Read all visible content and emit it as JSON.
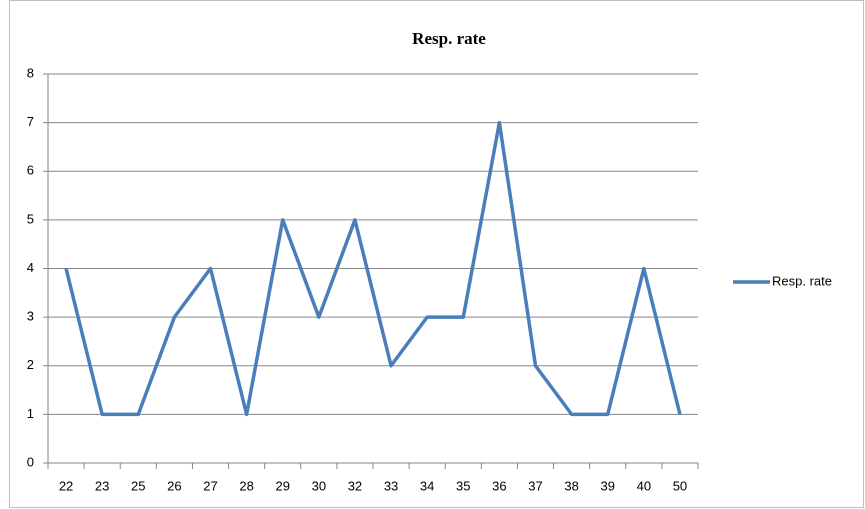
{
  "chart_data": {
    "type": "line",
    "title": "Resp. rate",
    "categories": [
      "22",
      "23",
      "25",
      "26",
      "27",
      "28",
      "29",
      "30",
      "32",
      "33",
      "34",
      "35",
      "36",
      "37",
      "38",
      "39",
      "40",
      "50"
    ],
    "series": [
      {
        "name": "Resp. rate",
        "color": "#4a7ebb",
        "values": [
          4,
          1,
          1,
          3,
          4,
          1,
          5,
          3,
          5,
          2,
          3,
          3,
          7,
          2,
          1,
          1,
          4,
          1
        ]
      }
    ],
    "ylim": [
      0,
      8
    ],
    "yticks": [
      0,
      1,
      2,
      3,
      4,
      5,
      6,
      7,
      8
    ],
    "grid": true,
    "legend": "right"
  }
}
